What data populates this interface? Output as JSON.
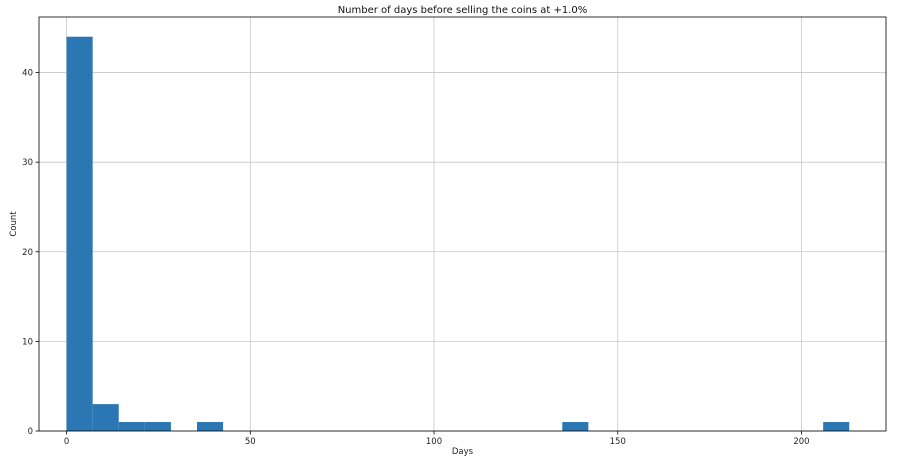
{
  "chart_data": {
    "type": "bar",
    "title": "Number of days before selling the coins at +1.0%",
    "xlabel": "Days",
    "ylabel": "Count",
    "xlim": [
      -7.5,
      223
    ],
    "ylim": [
      0,
      46.2
    ],
    "x_ticks": [
      0,
      50,
      100,
      150,
      200
    ],
    "y_ticks": [
      0,
      10,
      20,
      30,
      40
    ],
    "grid": true,
    "bar_color": "#2a77b4",
    "bins": [
      {
        "x0": 0,
        "x1": 7.1,
        "count": 44
      },
      {
        "x0": 7.1,
        "x1": 14.2,
        "count": 3
      },
      {
        "x0": 14.2,
        "x1": 21.3,
        "count": 1
      },
      {
        "x0": 21.3,
        "x1": 28.4,
        "count": 1
      },
      {
        "x0": 35.5,
        "x1": 42.6,
        "count": 1
      },
      {
        "x0": 134.9,
        "x1": 142.0,
        "count": 1
      },
      {
        "x0": 205.9,
        "x1": 213.0,
        "count": 1
      }
    ]
  }
}
